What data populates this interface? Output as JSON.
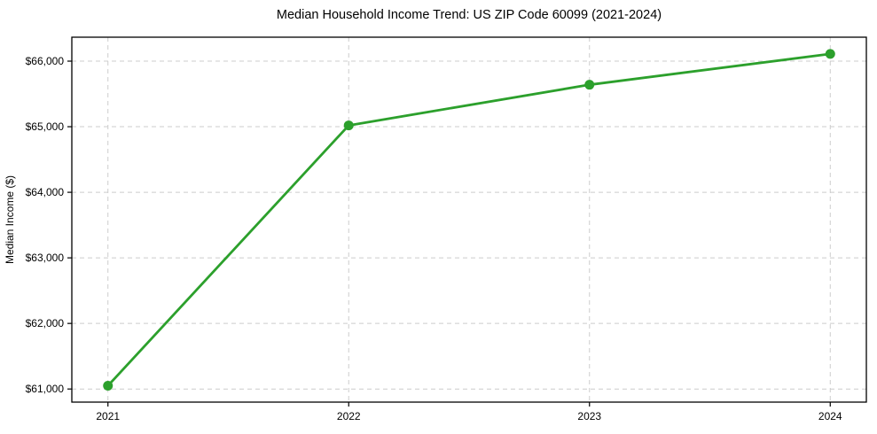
{
  "chart_data": {
    "type": "line",
    "title": "Median Household Income Trend: US ZIP Code 60099 (2021-2024)",
    "xlabel": "",
    "ylabel": "Median Income ($)",
    "x": [
      2021,
      2022,
      2023,
      2024
    ],
    "x_tick_labels": [
      "2021",
      "2022",
      "2023",
      "2024"
    ],
    "values": [
      61050,
      65020,
      65640,
      66110
    ],
    "y_ticks": [
      61000,
      62000,
      63000,
      64000,
      65000,
      66000
    ],
    "y_tick_labels": [
      "$61,000",
      "$62,000",
      "$63,000",
      "$64,000",
      "$65,000",
      "$66,000"
    ],
    "xlim": [
      2020.85,
      2024.15
    ],
    "ylim": [
      60800,
      66365
    ],
    "grid": true,
    "grid_style": "dashed",
    "legend": false,
    "legend_position": "none",
    "marker": "circle"
  },
  "colors": {
    "line": "#2ca02c",
    "marker": "#2ca02c",
    "grid": "#cccccc",
    "spine": "#000000",
    "text": "#000000",
    "background": "#ffffff"
  }
}
